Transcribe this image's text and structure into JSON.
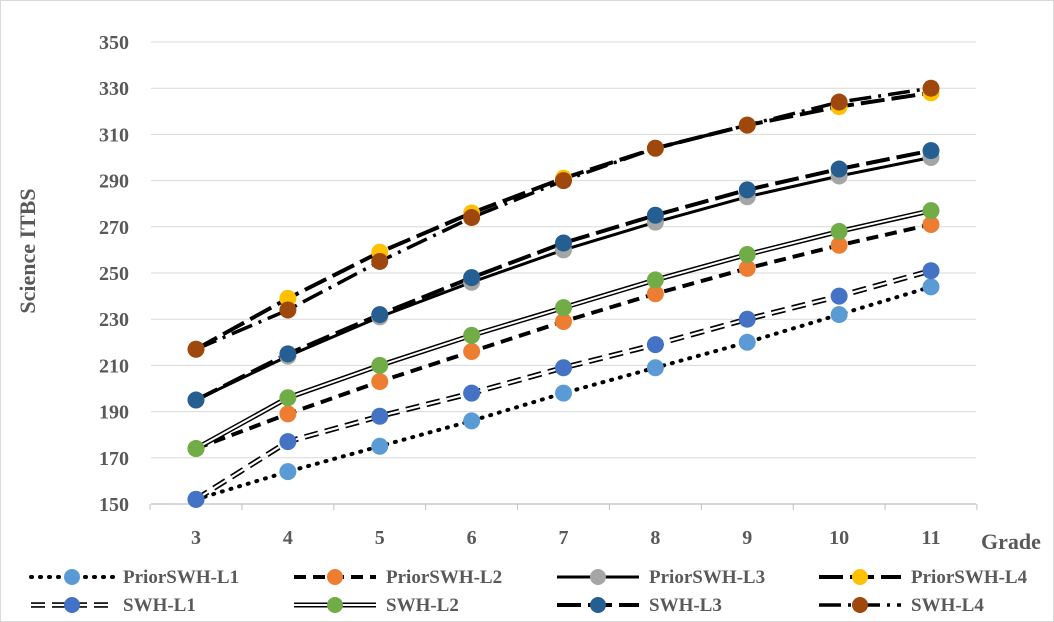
{
  "chart_data": {
    "type": "line",
    "xlabel": "Grade",
    "ylabel": "Science ITBS",
    "x": [
      3,
      4,
      5,
      6,
      7,
      8,
      9,
      10,
      11
    ],
    "xlim": [
      3,
      11
    ],
    "ylim": [
      150,
      350
    ],
    "yticks": [
      150,
      170,
      190,
      210,
      230,
      250,
      270,
      290,
      310,
      330,
      350
    ],
    "grid": "horizontal",
    "legend": "bottom",
    "series": [
      {
        "name": "PriorSWH-L1",
        "line_style": "dotted",
        "marker_color": "#5b9bd5",
        "values": [
          152,
          164,
          175,
          186,
          198,
          209,
          220,
          232,
          244
        ]
      },
      {
        "name": "PriorSWH-L2",
        "line_style": "dashed",
        "marker_color": "#ed7d31",
        "values": [
          174,
          189,
          203,
          216,
          229,
          241,
          252,
          262,
          271
        ]
      },
      {
        "name": "PriorSWH-L3",
        "line_style": "solid",
        "marker_color": "#a5a5a5",
        "values": [
          195,
          214,
          231,
          246,
          260,
          272,
          283,
          292,
          300
        ]
      },
      {
        "name": "PriorSWH-L4",
        "line_style": "long-dash",
        "marker_color": "#ffc000",
        "values": [
          217,
          239,
          259,
          276,
          291,
          304,
          314,
          322,
          328
        ]
      },
      {
        "name": "SWH-L1",
        "line_style": "double-dashed",
        "marker_color": "#4472c4",
        "values": [
          152,
          177,
          188,
          198,
          209,
          219,
          230,
          240,
          251
        ]
      },
      {
        "name": "SWH-L2",
        "line_style": "double",
        "marker_color": "#70ad47",
        "values": [
          174,
          196,
          210,
          223,
          235,
          247,
          258,
          268,
          277
        ]
      },
      {
        "name": "SWH-L3",
        "line_style": "long-dash",
        "marker_color": "#255e91",
        "values": [
          195,
          215,
          232,
          248,
          263,
          275,
          286,
          295,
          303
        ]
      },
      {
        "name": "SWH-L4",
        "line_style": "dash-dot",
        "marker_color": "#9e480e",
        "values": [
          217,
          234,
          255,
          274,
          290,
          304,
          314,
          324,
          330
        ]
      }
    ]
  }
}
